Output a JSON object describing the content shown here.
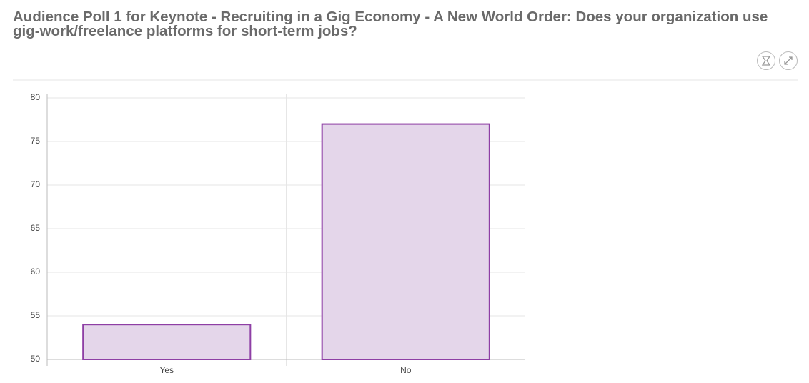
{
  "chart_data": {
    "type": "bar",
    "title": "Audience Poll 1 for Keynote - Recruiting in a Gig Economy - A New World Order: Does your organization use gig-work/freelance platforms for short-term jobs?",
    "categories": [
      "Yes",
      "No"
    ],
    "values": [
      54,
      77
    ],
    "color": "#e4d6ea",
    "edge_color": "#8e3fa5",
    "ylim": [
      50,
      80
    ],
    "yticks": [
      50,
      55,
      60,
      65,
      70,
      75,
      80
    ],
    "grid": true
  }
}
